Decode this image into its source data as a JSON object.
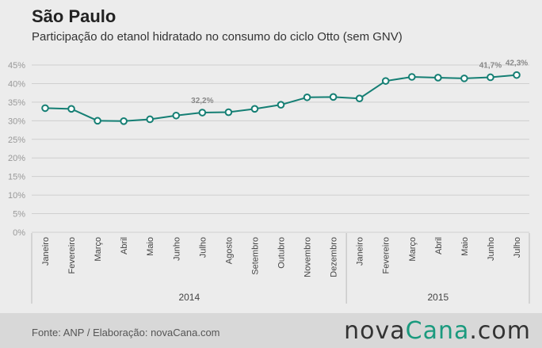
{
  "title": "São Paulo",
  "subtitle": "Participação do etanol hidratado no consumo do ciclo Otto (sem GNV)",
  "footer": {
    "source": "Fonte: ANP / Elaboração: novaCana.com",
    "brand_a": "nova",
    "brand_b": "Cana",
    "brand_c": ".com"
  },
  "colors": {
    "line": "#157f74",
    "grid": "#cfcfcf",
    "accent": "#1a9a7e"
  },
  "chart_data": {
    "type": "line",
    "title": "São Paulo",
    "subtitle": "Participação do etanol hidratado no consumo do ciclo Otto (sem GNV)",
    "ylim": [
      0,
      45
    ],
    "yticks": [
      "0%",
      "5%",
      "10%",
      "15%",
      "20%",
      "25%",
      "30%",
      "35%",
      "40%",
      "45%"
    ],
    "grid": true,
    "categories": [
      "Janeiro",
      "Fevereiro",
      "Março",
      "Abril",
      "Maio",
      "Junho",
      "Julho",
      "Agosto",
      "Setembro",
      "Outubro",
      "Novembro",
      "Dezembro",
      "Janeiro",
      "Fevereiro",
      "Março",
      "Abril",
      "Maio",
      "Junho",
      "Julho"
    ],
    "groups": [
      {
        "label": "2014",
        "count": 12
      },
      {
        "label": "2015",
        "count": 7
      }
    ],
    "series": [
      {
        "values": [
          33.4,
          33.2,
          30.0,
          29.9,
          30.4,
          31.4,
          32.2,
          32.3,
          33.2,
          34.3,
          36.3,
          36.4,
          36.0,
          40.7,
          41.8,
          41.6,
          41.4,
          41.7,
          42.3
        ]
      }
    ],
    "data_labels": [
      {
        "index": 6,
        "text": "32,2%"
      },
      {
        "index": 17,
        "text": "41,7%"
      },
      {
        "index": 18,
        "text": "42,3%"
      }
    ]
  }
}
